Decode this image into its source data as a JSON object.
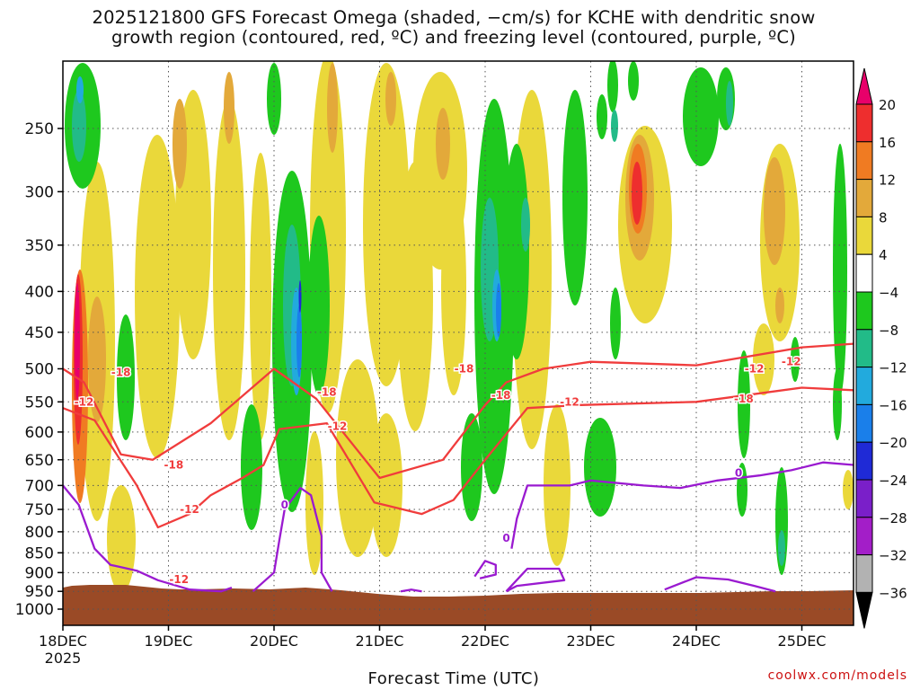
{
  "title_line1": "2025121800 GFS Forecast Omega (shaded, −cm/s) for KCHE with dendritic snow",
  "title_line2": "growth region (contoured, red, ºC) and freezing level (contoured, purple, ºC)",
  "credit": "coolwx.com/models",
  "colors": {
    "terrain": "#9a4a26",
    "dgz_contour": "#f03c3c",
    "freezing_contour": "#9a1ad0",
    "grid": "#555555"
  },
  "chart_data": {
    "type": "heatmap",
    "xlabel": "Forecast Time (UTC)",
    "ylabel": "",
    "x_tick_labels": [
      "18DEC",
      "19DEC",
      "20DEC",
      "21DEC",
      "22DEC",
      "23DEC",
      "24DEC",
      "25DEC"
    ],
    "x_year_label": "2025",
    "x_days": [
      0,
      1,
      2,
      3,
      4,
      5,
      6,
      7
    ],
    "xlim": [
      0,
      7.5
    ],
    "y_tick_labels": [
      "250",
      "300",
      "350",
      "400",
      "450",
      "500",
      "550",
      "600",
      "650",
      "700",
      "750",
      "800",
      "850",
      "900",
      "950",
      "1000"
    ],
    "y_levels": [
      250,
      300,
      350,
      400,
      450,
      500,
      550,
      600,
      650,
      700,
      750,
      800,
      850,
      900,
      950,
      1000
    ],
    "ylim": [
      1050,
      200
    ],
    "grid": true,
    "colorbar": {
      "labels": [
        "20",
        "16",
        "12",
        "8",
        "4",
        "−4",
        "−8",
        "−12",
        "−16",
        "−20",
        "−24",
        "−28",
        "−32",
        "−36"
      ],
      "colors": [
        "#e8006a",
        "#ee2e2e",
        "#f07b22",
        "#e3a93a",
        "#ead83a",
        "#ffffff",
        "#1ec81e",
        "#22bb88",
        "#22aadd",
        "#1a7fea",
        "#1f2ad6",
        "#7a1fc9",
        "#a31ec8",
        "#b2b2b2",
        "#000000"
      ]
    },
    "contour_labels": {
      "dgz": [
        "-12",
        "-18",
        "-18",
        "-12",
        "-12",
        "-18",
        "-12",
        "-18",
        "-18",
        "-12",
        "-12",
        "-18",
        "-12"
      ],
      "freezing": [
        "0",
        "0",
        "0"
      ]
    },
    "series": [
      {
        "points": [
          [
            0,
            500
          ],
          [
            0.2,
            520
          ],
          [
            0.55,
            640
          ],
          [
            0.85,
            650
          ],
          [
            1.4,
            585
          ],
          [
            2.0,
            500
          ],
          [
            2.4,
            545
          ],
          [
            3.0,
            685
          ],
          [
            3.6,
            650
          ],
          [
            4.0,
            555
          ],
          [
            4.2,
            520
          ],
          [
            4.55,
            500
          ],
          [
            5.0,
            490
          ],
          [
            6.0,
            495
          ],
          [
            7.0,
            470
          ],
          [
            7.5,
            465
          ]
        ]
      },
      {
        "points": [
          [
            0,
            560
          ],
          [
            0.3,
            580
          ],
          [
            0.7,
            700
          ],
          [
            0.9,
            790
          ],
          [
            1.2,
            760
          ],
          [
            1.4,
            720
          ],
          [
            1.7,
            685
          ],
          [
            1.9,
            660
          ],
          [
            2.05,
            595
          ],
          [
            2.5,
            585
          ],
          [
            2.95,
            735
          ],
          [
            3.4,
            760
          ],
          [
            3.7,
            730
          ],
          [
            4.0,
            650
          ],
          [
            4.4,
            560
          ],
          [
            4.9,
            555
          ],
          [
            6.0,
            550
          ],
          [
            7.0,
            528
          ],
          [
            7.5,
            532
          ]
        ]
      },
      {
        "points": [
          [
            0,
            700
          ],
          [
            0.15,
            740
          ],
          [
            0.3,
            840
          ],
          [
            0.45,
            880
          ],
          [
            0.7,
            895
          ],
          [
            0.9,
            920
          ],
          [
            1.2,
            945
          ],
          [
            1.5,
            950
          ],
          [
            1.6,
            940
          ]
        ]
      },
      {
        "points": [
          [
            1.8,
            950
          ],
          [
            2.0,
            900
          ],
          [
            2.05,
            820
          ],
          [
            2.1,
            750
          ],
          [
            2.2,
            720
          ],
          [
            2.25,
            705
          ],
          [
            2.35,
            720
          ],
          [
            2.45,
            810
          ],
          [
            2.45,
            900
          ],
          [
            2.55,
            950
          ]
        ]
      },
      {
        "points": [
          [
            3.2,
            950
          ],
          [
            3.3,
            945
          ],
          [
            3.4,
            950
          ]
        ]
      },
      {
        "points": [
          [
            3.9,
            910
          ],
          [
            4.0,
            870
          ],
          [
            4.1,
            880
          ],
          [
            4.1,
            905
          ],
          [
            3.95,
            915
          ]
        ]
      },
      {
        "points": [
          [
            4.2,
            950
          ],
          [
            4.4,
            890
          ],
          [
            4.7,
            890
          ],
          [
            4.75,
            920
          ],
          [
            4.3,
            935
          ],
          [
            4.2,
            950
          ]
        ]
      },
      {
        "points": [
          [
            4.25,
            840
          ],
          [
            4.3,
            770
          ],
          [
            4.4,
            700
          ],
          [
            4.8,
            700
          ],
          [
            5.0,
            690
          ],
          [
            5.5,
            700
          ],
          [
            5.85,
            705
          ],
          [
            6.2,
            690
          ],
          [
            6.6,
            680
          ],
          [
            6.9,
            670
          ],
          [
            7.2,
            655
          ],
          [
            7.5,
            660
          ]
        ]
      },
      {
        "points": [
          [
            5.7,
            945
          ],
          [
            6.0,
            912
          ],
          [
            6.3,
            918
          ],
          [
            6.55,
            935
          ],
          [
            6.75,
            950
          ]
        ]
      }
    ]
  }
}
